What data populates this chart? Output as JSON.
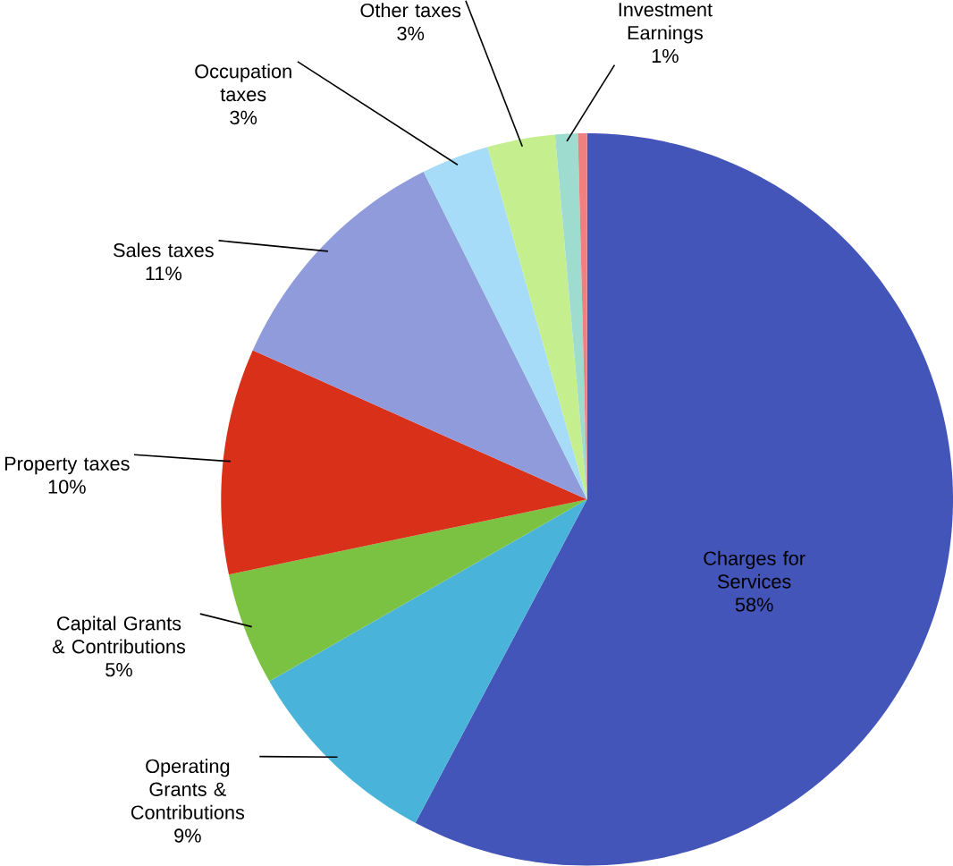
{
  "chart_data": {
    "type": "pie",
    "categories": [
      "Charges for Services",
      "Operating Grants & Contributions",
      "Capital Grants & Contributions",
      "Property taxes",
      "Sales taxes",
      "Occupation taxes",
      "Other taxes",
      "Investment Earnings",
      null
    ],
    "values": [
      58,
      9,
      5,
      10,
      11,
      3,
      3,
      1,
      0.4
    ],
    "colors": [
      "#4355b8",
      "#4ab3d9",
      "#7cc242",
      "#d9301a",
      "#8f9bdb",
      "#a6dcf7",
      "#c5ef8f",
      "#9fdcd0",
      "#f08080"
    ],
    "value_labels": [
      "58%",
      "9%",
      "5%",
      "10%",
      "11%",
      "3%",
      "3%",
      "1%",
      null
    ]
  }
}
